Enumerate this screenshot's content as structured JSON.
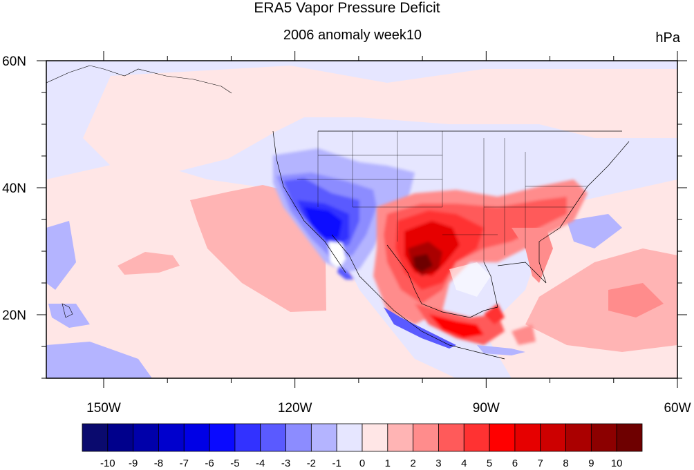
{
  "chart_data": {
    "type": "heatmap",
    "title": "ERA5 Vapor Pressure Deficit",
    "subtitle": "2006 anomaly week10",
    "units": "hPa",
    "x_ticks": [
      "150W",
      "120W",
      "90W",
      "60W"
    ],
    "y_ticks": [
      "60N",
      "40N",
      "20N"
    ],
    "xlim": [
      -159,
      -60
    ],
    "ylim": [
      10,
      60
    ],
    "colorbar": {
      "levels": [
        "-10",
        "-9",
        "-8",
        "-7",
        "-6",
        "-5",
        "-4",
        "-3",
        "-2",
        "-1",
        "0",
        "1",
        "2",
        "3",
        "4",
        "5",
        "6",
        "7",
        "8",
        "9",
        "10"
      ],
      "colors": [
        "#0a0a6e",
        "#00008c",
        "#0000aa",
        "#0000cd",
        "#0000e6",
        "#0a0aff",
        "#3232ff",
        "#5a5aff",
        "#8c8cff",
        "#b4b4ff",
        "#e6e6ff",
        "#ffe6e6",
        "#ffb4b4",
        "#ff8c8c",
        "#ff5a5a",
        "#ff3232",
        "#ff0000",
        "#e60000",
        "#cd0000",
        "#aa0000",
        "#8c0000",
        "#6e0000"
      ]
    },
    "regions": [
      {
        "name": "background-slight-negative",
        "value": -0.5
      },
      {
        "name": "pacific-north-slight-positive",
        "value": 0.5
      },
      {
        "name": "eastern-pacific-positive",
        "value": 1.5
      },
      {
        "name": "southwest-us-negative",
        "value": -3.5
      },
      {
        "name": "baja-strong-negative",
        "value": -5.5
      },
      {
        "name": "texas-strong-positive",
        "value": 7.5
      },
      {
        "name": "southeast-us-positive",
        "value": 3.5
      },
      {
        "name": "mexico-positive",
        "value": 4.5
      },
      {
        "name": "caribbean-positive",
        "value": 1.5
      }
    ]
  }
}
